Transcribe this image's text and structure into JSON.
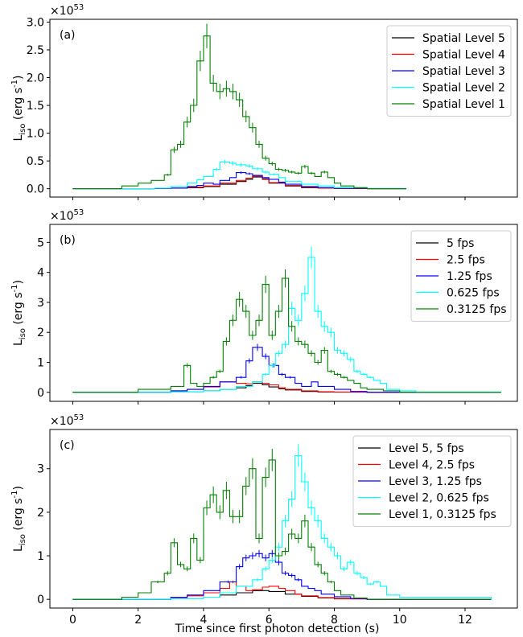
{
  "figure": {
    "xlabel": "Time since first photon detection (s)",
    "xticks": [
      0,
      2,
      4,
      6,
      8,
      10,
      12
    ]
  },
  "chart_data": [
    {
      "type": "line",
      "panel_label": "(a)",
      "ylabel": "L_iso (erg s^-1)",
      "multiplier": "×10^53",
      "xlim": [
        -0.7,
        13.6
      ],
      "ylim": [
        -0.15,
        3.05
      ],
      "yticks": [
        0.0,
        0.5,
        1.0,
        1.5,
        2.0,
        2.5,
        3.0
      ],
      "ytick_labels": [
        "0.0",
        "0.5",
        "1.0",
        "1.5",
        "2.0",
        "2.5",
        "3.0"
      ],
      "legend": "top-right",
      "series": [
        {
          "name": "Spatial Level 5",
          "color": "#000000",
          "x": [
            0.0,
            1.5,
            2.5,
            3.0,
            3.5,
            4.0,
            4.5,
            5.0,
            5.3,
            5.5,
            5.8,
            6.0,
            6.5,
            7.0,
            7.5,
            8.0,
            9.0,
            10.2
          ],
          "y": [
            0.0,
            0.0,
            0.005,
            0.01,
            0.02,
            0.04,
            0.08,
            0.13,
            0.17,
            0.21,
            0.17,
            0.1,
            0.05,
            0.02,
            0.01,
            0.005,
            0.0,
            0.0
          ]
        },
        {
          "name": "Spatial Level 4",
          "color": "#ff0000",
          "x": [
            0.0,
            1.5,
            2.5,
            3.0,
            3.5,
            4.0,
            4.5,
            5.0,
            5.3,
            5.5,
            5.8,
            6.0,
            6.5,
            7.0,
            7.5,
            8.0,
            9.0,
            10.2
          ],
          "y": [
            0.0,
            0.0,
            0.005,
            0.01,
            0.03,
            0.05,
            0.1,
            0.15,
            0.19,
            0.23,
            0.18,
            0.11,
            0.06,
            0.03,
            0.01,
            0.005,
            0.0,
            0.0
          ]
        },
        {
          "name": "Spatial Level 3",
          "color": "#0000ff",
          "x": [
            0.0,
            1.5,
            2.5,
            3.0,
            3.5,
            3.8,
            4.0,
            4.3,
            4.5,
            4.8,
            5.0,
            5.3,
            5.5,
            5.8,
            6.0,
            6.3,
            6.5,
            7.0,
            7.5,
            8.0,
            9.0,
            10.2
          ],
          "y": [
            0.0,
            0.0,
            0.005,
            0.01,
            0.04,
            0.06,
            0.1,
            0.08,
            0.15,
            0.2,
            0.29,
            0.27,
            0.24,
            0.2,
            0.17,
            0.12,
            0.08,
            0.04,
            0.02,
            0.01,
            0.0,
            0.0
          ]
        },
        {
          "name": "Spatial Level 2",
          "color": "#00ffff",
          "x": [
            0.0,
            1.5,
            2.5,
            3.0,
            3.5,
            3.8,
            4.0,
            4.3,
            4.5,
            4.8,
            5.0,
            5.3,
            5.5,
            5.8,
            6.0,
            6.3,
            6.5,
            7.0,
            7.5,
            8.0,
            9.0,
            10.2
          ],
          "y": [
            0.0,
            0.0,
            0.01,
            0.04,
            0.1,
            0.16,
            0.22,
            0.35,
            0.48,
            0.46,
            0.43,
            0.41,
            0.36,
            0.3,
            0.26,
            0.2,
            0.13,
            0.08,
            0.05,
            0.02,
            0.005,
            0.0
          ]
        },
        {
          "name": "Spatial Level 1",
          "color": "#008000",
          "x": [
            0.0,
            1.0,
            1.5,
            2.0,
            2.4,
            2.8,
            3.0,
            3.2,
            3.4,
            3.6,
            3.8,
            4.0,
            4.2,
            4.4,
            4.6,
            4.8,
            5.0,
            5.2,
            5.4,
            5.6,
            5.8,
            6.0,
            6.2,
            6.4,
            6.6,
            6.8,
            7.0,
            7.2,
            7.4,
            7.6,
            7.8,
            8.0,
            8.2,
            8.6,
            9.0,
            10.2
          ],
          "y": [
            0.0,
            0.0,
            0.05,
            0.1,
            0.15,
            0.25,
            0.7,
            0.8,
            1.2,
            1.5,
            2.3,
            2.75,
            1.9,
            1.75,
            1.8,
            1.75,
            1.6,
            1.3,
            1.1,
            0.8,
            0.55,
            0.45,
            0.35,
            0.33,
            0.3,
            0.28,
            0.4,
            0.28,
            0.22,
            0.3,
            0.2,
            0.1,
            0.05,
            0.02,
            0.0,
            0.0
          ]
        }
      ]
    },
    {
      "type": "line",
      "panel_label": "(b)",
      "ylabel": "L_iso (erg s^-1)",
      "multiplier": "×10^53",
      "xlim": [
        -0.7,
        13.6
      ],
      "ylim": [
        -0.3,
        5.6
      ],
      "yticks": [
        0,
        1,
        2,
        3,
        4,
        5
      ],
      "ytick_labels": [
        "0",
        "1",
        "2",
        "3",
        "4",
        "5"
      ],
      "legend": "top-right",
      "series": [
        {
          "name": "5 fps",
          "color": "#000000",
          "x": [
            0.0,
            2.0,
            3.0,
            4.0,
            4.5,
            5.0,
            5.3,
            5.5,
            5.8,
            6.0,
            6.3,
            6.5,
            7.0,
            7.5,
            8.0,
            9.0,
            13.1
          ],
          "y": [
            0.0,
            0.0,
            0.02,
            0.05,
            0.1,
            0.15,
            0.22,
            0.3,
            0.25,
            0.18,
            0.12,
            0.08,
            0.03,
            0.01,
            0.005,
            0.0,
            0.0
          ]
        },
        {
          "name": "2.5 fps",
          "color": "#ff0000",
          "x": [
            0.0,
            2.0,
            3.0,
            3.5,
            4.0,
            4.5,
            5.0,
            5.3,
            5.5,
            5.8,
            6.0,
            6.3,
            6.5,
            7.0,
            7.5,
            8.0,
            9.0,
            13.1
          ],
          "y": [
            0.0,
            0.0,
            0.05,
            0.1,
            0.18,
            0.35,
            0.3,
            0.28,
            0.35,
            0.3,
            0.25,
            0.15,
            0.1,
            0.05,
            0.02,
            0.01,
            0.0,
            0.0
          ]
        },
        {
          "name": "1.25 fps",
          "color": "#0000ff",
          "x": [
            0.0,
            2.0,
            3.0,
            3.5,
            4.0,
            4.5,
            5.0,
            5.3,
            5.5,
            5.8,
            6.0,
            6.3,
            6.5,
            6.8,
            7.0,
            7.3,
            7.5,
            8.0,
            8.5,
            9.0,
            13.1
          ],
          "y": [
            0.0,
            0.0,
            0.05,
            0.1,
            0.2,
            0.35,
            0.5,
            1.05,
            1.5,
            1.2,
            0.9,
            0.6,
            0.5,
            0.3,
            0.2,
            0.35,
            0.2,
            0.1,
            0.03,
            0.0,
            0.0
          ]
        },
        {
          "name": "0.625 fps",
          "color": "#00ffff",
          "x": [
            0.0,
            2.0,
            3.0,
            4.0,
            4.5,
            5.0,
            5.5,
            5.8,
            6.0,
            6.2,
            6.4,
            6.6,
            6.8,
            7.0,
            7.2,
            7.4,
            7.6,
            7.8,
            8.0,
            8.2,
            8.4,
            8.6,
            8.8,
            9.0,
            9.2,
            9.4,
            9.6,
            10.0,
            10.5,
            13.1
          ],
          "y": [
            0.0,
            0.0,
            0.02,
            0.05,
            0.1,
            0.2,
            0.35,
            0.6,
            0.9,
            1.3,
            1.6,
            2.8,
            2.4,
            3.3,
            4.5,
            2.7,
            2.2,
            2.0,
            1.4,
            1.3,
            1.1,
            0.7,
            0.6,
            0.5,
            0.4,
            0.3,
            0.1,
            0.05,
            0.01,
            0.0
          ]
        },
        {
          "name": "0.3125 fps",
          "color": "#008000",
          "x": [
            0.0,
            1.0,
            2.0,
            3.0,
            3.4,
            3.6,
            3.8,
            4.0,
            4.2,
            4.4,
            4.6,
            4.8,
            5.0,
            5.2,
            5.4,
            5.6,
            5.8,
            6.0,
            6.2,
            6.4,
            6.6,
            6.8,
            7.0,
            7.2,
            7.4,
            7.6,
            7.8,
            8.0,
            8.2,
            8.4,
            8.6,
            8.8,
            9.0,
            9.5,
            10.0,
            13.1
          ],
          "y": [
            0.0,
            0.0,
            0.1,
            0.2,
            0.9,
            0.3,
            0.2,
            0.3,
            0.5,
            0.7,
            1.7,
            2.4,
            3.1,
            2.7,
            1.9,
            2.4,
            3.6,
            1.9,
            2.7,
            3.8,
            2.2,
            1.7,
            1.6,
            1.3,
            1.0,
            1.4,
            0.7,
            0.6,
            0.5,
            0.4,
            0.3,
            0.15,
            0.1,
            0.05,
            0.0,
            0.0
          ]
        }
      ]
    },
    {
      "type": "line",
      "panel_label": "(c)",
      "ylabel": "L_iso (erg s^-1)",
      "multiplier": "×10^53",
      "xlim": [
        -0.7,
        13.6
      ],
      "ylim": [
        -0.2,
        3.9
      ],
      "yticks": [
        0,
        1,
        2,
        3
      ],
      "ytick_labels": [
        "0",
        "1",
        "2",
        "3"
      ],
      "legend": "top-right",
      "series": [
        {
          "name": "Level 5, 5 fps",
          "color": "#000000",
          "x": [
            0.0,
            2.0,
            3.0,
            4.0,
            4.5,
            5.0,
            5.5,
            6.0,
            6.5,
            7.0,
            7.5,
            8.0,
            9.0,
            12.8
          ],
          "y": [
            0.0,
            0.0,
            0.02,
            0.05,
            0.1,
            0.15,
            0.2,
            0.18,
            0.12,
            0.07,
            0.03,
            0.01,
            0.0,
            0.0
          ]
        },
        {
          "name": "Level 4, 2.5 fps",
          "color": "#ff0000",
          "x": [
            0.0,
            2.0,
            3.0,
            3.5,
            4.0,
            4.5,
            4.8,
            5.0,
            5.3,
            5.5,
            5.8,
            6.0,
            6.3,
            6.5,
            6.8,
            7.0,
            7.5,
            8.0,
            8.5,
            9.0,
            12.8
          ],
          "y": [
            0.0,
            0.0,
            0.03,
            0.08,
            0.15,
            0.25,
            0.4,
            0.3,
            0.2,
            0.22,
            0.28,
            0.3,
            0.25,
            0.2,
            0.12,
            0.08,
            0.04,
            0.02,
            0.01,
            0.0,
            0.0
          ]
        },
        {
          "name": "Level 3, 1.25 fps",
          "color": "#0000ff",
          "x": [
            0.0,
            2.0,
            3.0,
            3.5,
            4.0,
            4.5,
            5.0,
            5.2,
            5.4,
            5.6,
            5.8,
            6.0,
            6.2,
            6.4,
            6.6,
            6.8,
            7.0,
            7.2,
            7.4,
            7.6,
            8.0,
            8.5,
            9.0,
            12.8
          ],
          "y": [
            0.0,
            0.0,
            0.05,
            0.1,
            0.2,
            0.4,
            0.75,
            0.95,
            1.0,
            1.05,
            0.95,
            1.05,
            0.85,
            0.6,
            0.55,
            0.45,
            0.3,
            0.25,
            0.2,
            0.12,
            0.06,
            0.02,
            0.0,
            0.0
          ]
        },
        {
          "name": "Level 2, 0.625 fps",
          "color": "#00ffff",
          "x": [
            0.0,
            2.0,
            3.0,
            4.0,
            4.5,
            5.0,
            5.5,
            5.8,
            6.0,
            6.2,
            6.4,
            6.6,
            6.8,
            7.0,
            7.2,
            7.4,
            7.6,
            7.8,
            8.0,
            8.2,
            8.4,
            8.6,
            8.8,
            9.0,
            9.2,
            9.4,
            9.6,
            10.0,
            12.8
          ],
          "y": [
            0.0,
            0.0,
            0.02,
            0.05,
            0.15,
            0.3,
            0.45,
            0.7,
            0.9,
            1.2,
            1.8,
            2.3,
            3.3,
            2.7,
            2.1,
            1.8,
            1.4,
            1.2,
            1.0,
            0.7,
            0.85,
            0.6,
            0.5,
            0.35,
            0.4,
            0.3,
            0.1,
            0.05,
            0.0
          ]
        },
        {
          "name": "Level 1, 0.3125 fps",
          "color": "#008000",
          "x": [
            0.0,
            1.0,
            1.5,
            2.0,
            2.4,
            2.8,
            3.0,
            3.2,
            3.4,
            3.6,
            3.8,
            4.0,
            4.2,
            4.4,
            4.6,
            4.8,
            5.0,
            5.2,
            5.4,
            5.6,
            5.8,
            6.0,
            6.2,
            6.4,
            6.6,
            6.8,
            7.0,
            7.2,
            7.4,
            7.6,
            7.8,
            8.0,
            8.2,
            8.6,
            9.0,
            12.8
          ],
          "y": [
            0.0,
            0.0,
            0.05,
            0.15,
            0.4,
            0.6,
            1.3,
            0.8,
            0.7,
            1.4,
            0.9,
            2.1,
            2.4,
            2.0,
            2.5,
            1.9,
            1.9,
            2.6,
            3.0,
            1.4,
            2.8,
            3.2,
            1.0,
            1.1,
            1.5,
            1.4,
            1.8,
            1.2,
            0.8,
            0.6,
            0.4,
            0.2,
            0.1,
            0.03,
            0.0,
            0.0
          ]
        }
      ]
    }
  ]
}
